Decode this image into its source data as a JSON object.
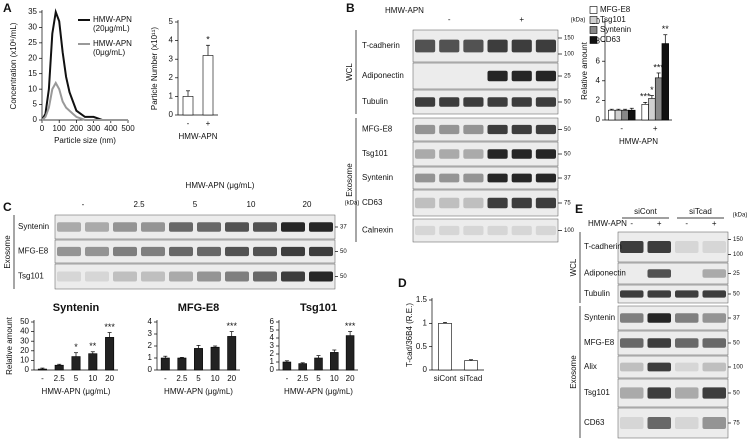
{
  "panel_labels": [
    "A",
    "B",
    "C",
    "D",
    "E"
  ],
  "chart_data": [
    {
      "type": "line",
      "x_label": "Particle size (nm)",
      "y_label": "Concentration (x10⁶/mL)",
      "x": [
        0,
        20,
        40,
        60,
        80,
        100,
        120,
        140,
        160,
        180,
        200,
        250,
        300,
        350,
        400,
        450,
        500
      ],
      "series": [
        {
          "name": "HMW-APN (20μg/mL)",
          "color": "#111111",
          "values": [
            0,
            2,
            10,
            28,
            35,
            32,
            22,
            14,
            9,
            6,
            3,
            1,
            1,
            0,
            0,
            0,
            0
          ]
        },
        {
          "name": "HMW-APN (0μg/mL)",
          "color": "#999999",
          "values": [
            0,
            1,
            4,
            10,
            12,
            10,
            6,
            4,
            3,
            2,
            1,
            0,
            0,
            0,
            0,
            0,
            0
          ]
        }
      ],
      "xlim": [
        0,
        500
      ],
      "xticks": [
        0,
        100,
        200,
        300,
        400,
        500
      ],
      "ylim": [
        0,
        35
      ],
      "yticks": [
        0,
        5,
        10,
        15,
        20,
        25,
        30,
        35
      ],
      "legend": "upper right"
    },
    {
      "type": "bar",
      "y_label": "Particle Number (x10¹¹)",
      "x_label": "HMW-APN",
      "categories": [
        "-",
        "+"
      ],
      "values": [
        1.0,
        3.2
      ],
      "errors": [
        0.3,
        0.55
      ],
      "annotations": [
        null,
        "*"
      ],
      "color": "#ffffff",
      "ylim": [
        0,
        5
      ],
      "yticks": [
        0,
        1,
        2,
        3,
        4,
        5
      ]
    },
    {
      "type": "bar",
      "y_label": "Relative amount",
      "x_label": "HMW-APN",
      "categories": [
        "-",
        "+"
      ],
      "series": [
        {
          "name": "MFG-E8",
          "color": "#ffffff",
          "values": [
            1.0,
            1.6
          ],
          "errors": [
            0.1,
            0.2
          ],
          "annotations": [
            null,
            "***"
          ]
        },
        {
          "name": "Tsg101",
          "color": "#d0d0d0",
          "values": [
            1.0,
            2.2
          ],
          "errors": [
            0.1,
            0.3
          ],
          "annotations": [
            null,
            "*"
          ]
        },
        {
          "name": "Syntenin",
          "color": "#888888",
          "values": [
            1.0,
            4.3
          ],
          "errors": [
            0.1,
            0.5
          ],
          "annotations": [
            null,
            "***"
          ]
        },
        {
          "name": "CD63",
          "color": "#111111",
          "values": [
            1.0,
            7.8
          ],
          "errors": [
            0.2,
            0.9
          ],
          "annotations": [
            null,
            "**"
          ]
        }
      ],
      "ylim": [
        0,
        10
      ],
      "yticks": [
        0,
        2,
        4,
        6,
        8,
        10
      ],
      "legend": "upper left"
    },
    {
      "type": "bar",
      "title": "Syntenin",
      "y_label": "Relative amount",
      "x_label": "HMW-APN (μg/mL)",
      "categories": [
        "-",
        "2.5",
        "5",
        "10",
        "20"
      ],
      "values": [
        1,
        5,
        14,
        17,
        34
      ],
      "errors": [
        1,
        1,
        4,
        2,
        5
      ],
      "annotations": [
        null,
        null,
        "*",
        "**",
        "***"
      ],
      "color": "#222222",
      "ylim": [
        0,
        50
      ],
      "yticks": [
        0,
        10,
        20,
        30,
        40,
        50
      ]
    },
    {
      "type": "bar",
      "title": "MFG-E8",
      "x_label": "HMW-APN (μg/mL)",
      "categories": [
        "-",
        "2.5",
        "5",
        "10",
        "20"
      ],
      "values": [
        1.0,
        1.0,
        1.8,
        1.9,
        2.8
      ],
      "errors": [
        0.15,
        0.05,
        0.25,
        0.1,
        0.4
      ],
      "annotations": [
        null,
        null,
        null,
        null,
        "***"
      ],
      "color": "#222222",
      "ylim": [
        0,
        4
      ],
      "yticks": [
        0,
        1,
        2,
        3,
        4
      ]
    },
    {
      "type": "bar",
      "title": "Tsg101",
      "x_label": "HMW-APN (μg/mL)",
      "categories": [
        "-",
        "2.5",
        "5",
        "10",
        "20"
      ],
      "values": [
        1.0,
        0.8,
        1.5,
        2.2,
        4.3
      ],
      "errors": [
        0.15,
        0.1,
        0.3,
        0.3,
        0.5
      ],
      "annotations": [
        null,
        null,
        null,
        null,
        "***"
      ],
      "color": "#222222",
      "ylim": [
        0,
        6
      ],
      "yticks": [
        0,
        1,
        2,
        3,
        4,
        5,
        6
      ]
    },
    {
      "type": "bar",
      "y_label": "T-cad/36B4 (R.E.)",
      "categories": [
        "siCont",
        "siTcad"
      ],
      "values": [
        1.0,
        0.2
      ],
      "errors": [
        0.02,
        0.02
      ],
      "color": "#ffffff",
      "ylim": [
        0,
        1.5
      ],
      "yticks": [
        0,
        0.5,
        1,
        1.5
      ]
    }
  ],
  "blots": [
    {
      "header": "HMW-APN",
      "lanes": [
        "-",
        "+"
      ],
      "kda_label": "(kDa)",
      "groups": [
        {
          "label": "WCL",
          "rows": [
            {
              "label": "T-cadherin",
              "kda": [
                150,
                100
              ]
            },
            {
              "label": "Adiponectin",
              "kda": [
                25
              ]
            },
            {
              "label": "Tubulin",
              "kda": [
                50
              ]
            }
          ]
        },
        {
          "label": "Exosome",
          "rows": [
            {
              "label": "MFG-E8",
              "kda": [
                50
              ]
            },
            {
              "label": "Tsg101",
              "kda": [
                50
              ]
            },
            {
              "label": "Syntenin",
              "kda": [
                37
              ]
            },
            {
              "label": "CD63",
              "kda": [
                75
              ]
            },
            {
              "label": "Calnexin",
              "kda": [
                100
              ]
            }
          ]
        }
      ]
    },
    {
      "header": "HMW-APN (μg/mL)",
      "lanes": [
        "-",
        "2.5",
        "5",
        "10",
        "20"
      ],
      "kda_label": "(kDa)",
      "groups": [
        {
          "label": "Exosome",
          "rows": [
            {
              "label": "Syntenin",
              "kda": [
                37
              ]
            },
            {
              "label": "MFG-E8",
              "kda": [
                50
              ]
            },
            {
              "label": "Tsg101",
              "kda": [
                50
              ]
            }
          ]
        }
      ]
    },
    {
      "conditions": [
        "siCont",
        "siTcad"
      ],
      "header": "HMW-APN",
      "lanes": [
        "-",
        "+",
        "-",
        "+"
      ],
      "kda_label": "(kDa)",
      "groups": [
        {
          "label": "WCL",
          "rows": [
            {
              "label": "T-cadherin",
              "kda": [
                150,
                100
              ]
            },
            {
              "label": "Adiponectin",
              "kda": [
                25
              ]
            },
            {
              "label": "Tubulin",
              "kda": [
                50
              ]
            }
          ]
        },
        {
          "label": "Exosome",
          "rows": [
            {
              "label": "Syntenin",
              "kda": [
                37
              ]
            },
            {
              "label": "MFG-E8",
              "kda": [
                50
              ]
            },
            {
              "label": "Alix",
              "kda": [
                100
              ]
            },
            {
              "label": "Tsg101",
              "kda": [
                50
              ]
            },
            {
              "label": "CD63",
              "kda": [
                75
              ]
            }
          ]
        }
      ]
    }
  ]
}
